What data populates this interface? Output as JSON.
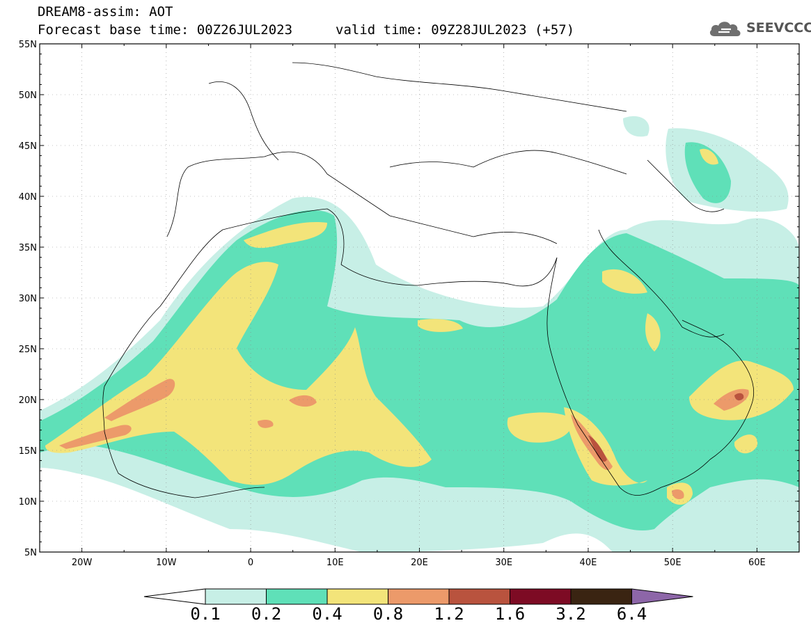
{
  "header": {
    "line1": "DREAM8-assim: AOT",
    "line2": "Forecast base time: 00Z26JUL2023",
    "line3": "valid time: 09Z28JUL2023 (+57)",
    "logo_text": "SEEVCCC"
  },
  "map": {
    "lon_range": [
      -25,
      65
    ],
    "lat_range": [
      5,
      55
    ],
    "lon_ticks": [
      "20W",
      "10W",
      "0",
      "10E",
      "20E",
      "30E",
      "40E",
      "50E",
      "60E"
    ],
    "lat_ticks": [
      "55N",
      "50N",
      "45N",
      "40N",
      "35N",
      "30N",
      "25N",
      "20N",
      "15N",
      "10N",
      "5N"
    ],
    "field": "AOT"
  },
  "colorbar": {
    "levels": [
      "0.1",
      "0.2",
      "0.4",
      "0.8",
      "1.2",
      "1.6",
      "3.2",
      "6.4"
    ],
    "colors": [
      "#c7efe6",
      "#5fe0b8",
      "#f3e47a",
      "#ec9a6a",
      "#b9533e",
      "#7d0b24",
      "#3a2412",
      "#8d66a8"
    ],
    "under_color": "#ffffff"
  }
}
